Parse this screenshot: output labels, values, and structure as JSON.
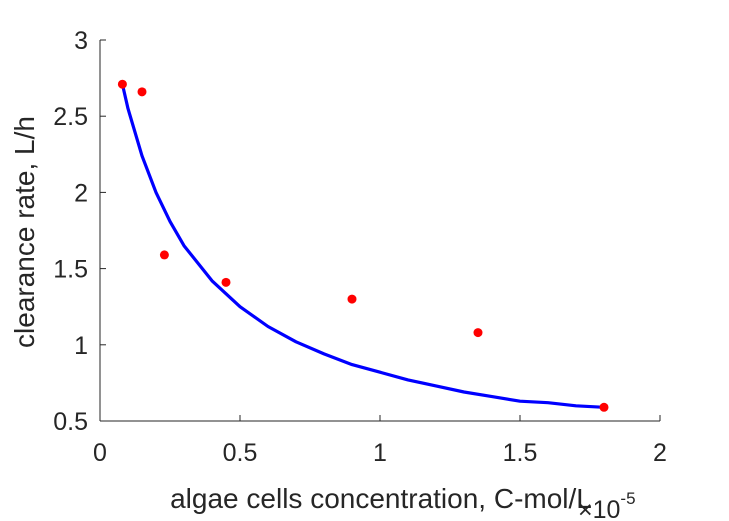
{
  "chart_data": {
    "type": "scatter",
    "xlabel": "algae cells concentration, C-mol/L",
    "ylabel": "clearance rate, L/h",
    "x_exponent_base": "×10",
    "x_exponent_power": "-5",
    "xlim": [
      0,
      2
    ],
    "ylim": [
      0.5,
      3
    ],
    "xticks": [
      0,
      0.5,
      1,
      1.5,
      2
    ],
    "xtick_labels": [
      "0",
      "0.5",
      "1",
      "1.5",
      "2"
    ],
    "yticks": [
      0.5,
      1,
      1.5,
      2,
      2.5,
      3
    ],
    "ytick_labels": [
      "0.5",
      "1",
      "1.5",
      "2",
      "2.5",
      "3"
    ],
    "grid": false,
    "series": [
      {
        "kind": "points",
        "color": "#ff0000",
        "x": [
          0.08,
          0.15,
          0.23,
          0.45,
          0.9,
          1.35,
          1.8
        ],
        "y": [
          2.71,
          2.66,
          1.59,
          1.41,
          1.3,
          1.08,
          0.59
        ]
      },
      {
        "kind": "curve",
        "color": "#0000ff",
        "x": [
          0.08,
          0.1,
          0.15,
          0.2,
          0.25,
          0.3,
          0.4,
          0.5,
          0.6,
          0.7,
          0.8,
          0.9,
          1.0,
          1.1,
          1.2,
          1.3,
          1.4,
          1.5,
          1.6,
          1.7,
          1.8
        ],
        "y": [
          2.71,
          2.55,
          2.24,
          2.0,
          1.81,
          1.65,
          1.42,
          1.25,
          1.12,
          1.02,
          0.94,
          0.87,
          0.82,
          0.77,
          0.73,
          0.69,
          0.66,
          0.63,
          0.62,
          0.6,
          0.59
        ]
      }
    ]
  }
}
